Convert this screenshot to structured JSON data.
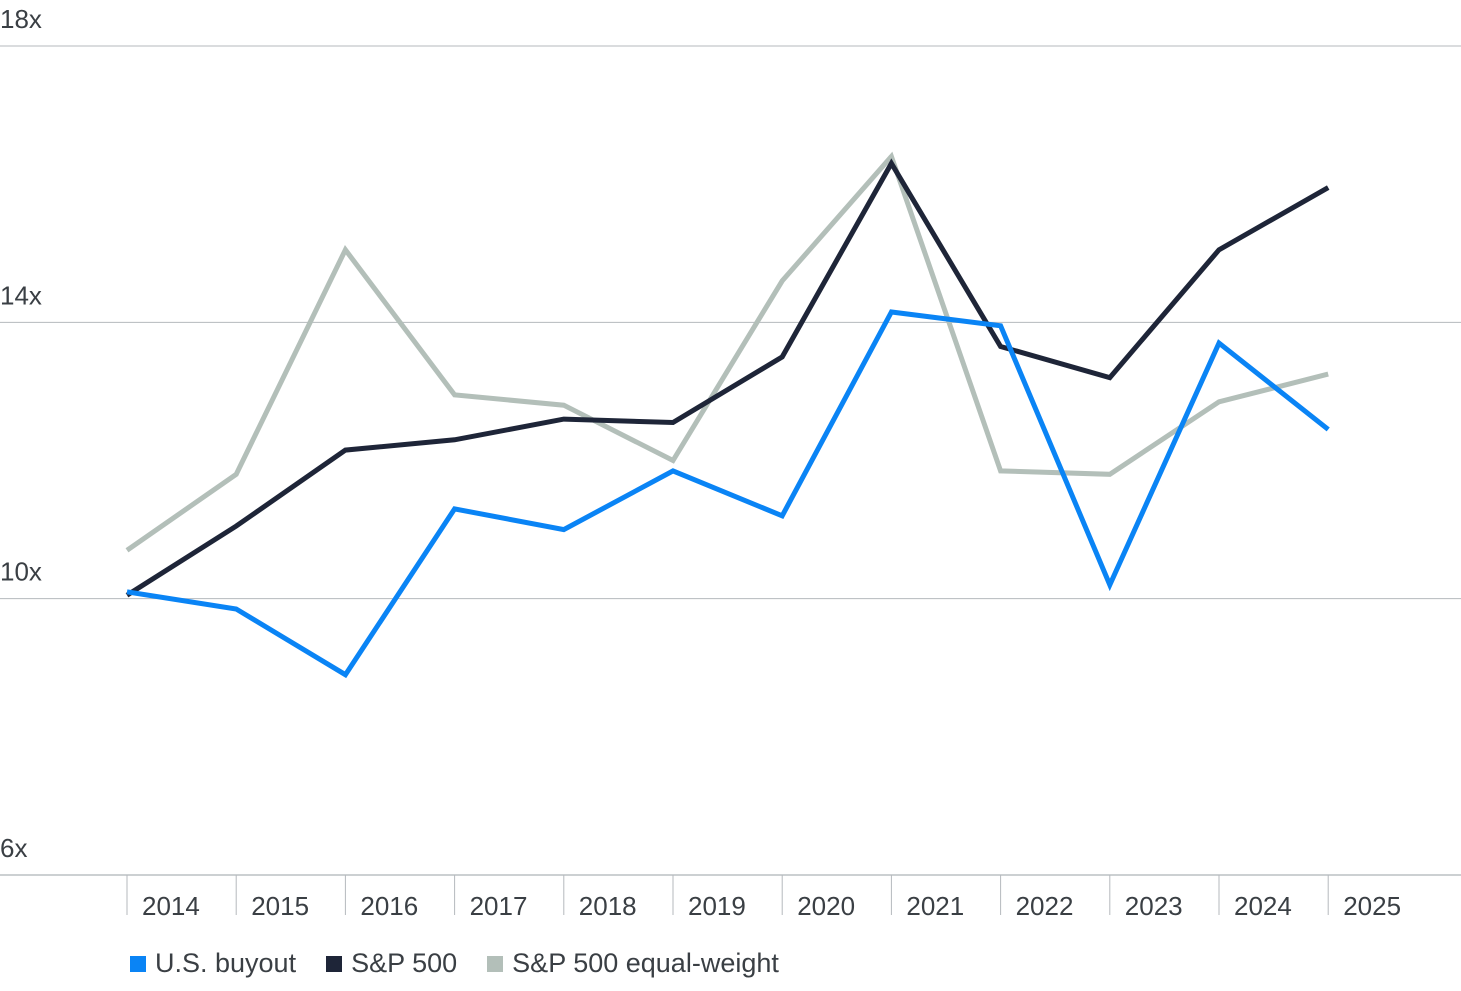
{
  "chart_data": {
    "type": "line",
    "title": "",
    "xlabel": "",
    "ylabel": "",
    "ylim": [
      6,
      18
    ],
    "y_ticks": [
      {
        "value": 18,
        "label": "18x"
      },
      {
        "value": 14,
        "label": "14x"
      },
      {
        "value": 10,
        "label": "10x"
      },
      {
        "value": 6,
        "label": "6x"
      }
    ],
    "grid": true,
    "legend_position": "bottom-left",
    "categories": [
      "2014",
      "2015",
      "2016",
      "2017",
      "2018",
      "2019",
      "2020",
      "2021",
      "2022",
      "2023",
      "2024",
      "2025"
    ],
    "series": [
      {
        "name": "U.S. buyout",
        "color": "#0a84f5",
        "values": [
          10.1,
          9.85,
          8.9,
          11.3,
          11.0,
          11.85,
          11.2,
          14.15,
          13.95,
          10.2,
          13.7,
          12.45
        ]
      },
      {
        "name": "S&P 500",
        "color": "#1e2538",
        "values": [
          10.05,
          11.05,
          12.15,
          12.3,
          12.6,
          12.55,
          13.5,
          16.3,
          13.65,
          13.2,
          15.05,
          15.95
        ]
      },
      {
        "name": "S&P 500 equal-weight",
        "color": "#b3bfb9",
        "values": [
          10.7,
          11.8,
          15.05,
          12.95,
          12.8,
          12.0,
          14.6,
          16.4,
          11.85,
          11.8,
          12.85,
          13.25
        ]
      }
    ]
  }
}
